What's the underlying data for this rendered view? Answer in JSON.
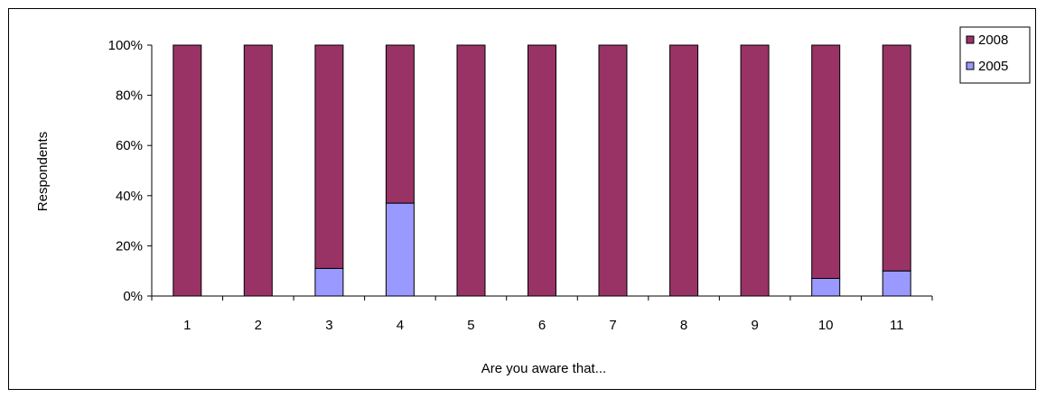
{
  "chart_data": {
    "type": "bar",
    "stacked": true,
    "percent_stacked": true,
    "categories": [
      "1",
      "2",
      "3",
      "4",
      "5",
      "6",
      "7",
      "8",
      "9",
      "10",
      "11"
    ],
    "series": [
      {
        "name": "2005",
        "color": "#9999ff",
        "values": [
          0,
          0,
          11,
          37,
          0,
          0,
          0,
          0,
          0,
          7,
          10
        ]
      },
      {
        "name": "2008",
        "color": "#993366",
        "values": [
          100,
          100,
          89,
          63,
          100,
          100,
          100,
          100,
          100,
          93,
          90
        ]
      }
    ],
    "xlabel": "Are you aware that...",
    "ylabel": "Respondents",
    "ylim": [
      0,
      100
    ],
    "yticks": [
      "0%",
      "20%",
      "40%",
      "60%",
      "80%",
      "100%"
    ],
    "ytick_values": [
      0,
      20,
      40,
      60,
      80,
      100
    ],
    "grid": false,
    "legend": {
      "placement": "top-right",
      "entries": [
        "2008",
        "2005"
      ]
    }
  }
}
